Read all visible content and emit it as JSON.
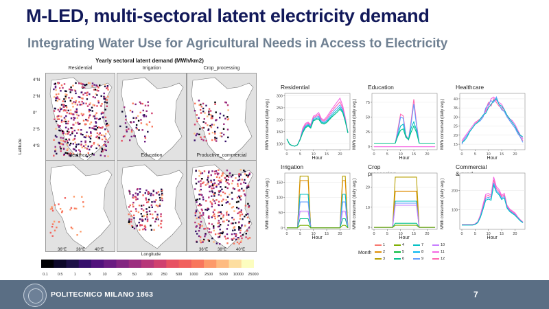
{
  "slide": {
    "title": "M-LED, multi-sectoral latent electricity demand",
    "subtitle": "Integrating Water Use for Agricultural Needs in Access to Electricity",
    "page_number": "7",
    "footer_text": "POLITECNICO MILANO 1863"
  },
  "maps": {
    "title": "Yearly sectoral latent demand (MWh/km2)",
    "ylabel": "Latitude",
    "xlabel": "Longitude",
    "y_ticks": [
      "4°N",
      "2°N",
      "0°",
      "2°S",
      "4°S"
    ],
    "x_ticks": [
      "36°E",
      "38°E",
      "40°E"
    ],
    "panels": [
      "Residential",
      "Irrigation",
      "Crop_processing",
      "Healthcare",
      "Education",
      "Productive_commercial"
    ],
    "colorbar_labels": [
      "0.1",
      "0.5",
      "1",
      "5",
      "10",
      "25",
      "50",
      "100",
      "250",
      "500",
      "1000",
      "2500",
      "5000",
      "10000",
      "25000"
    ],
    "colorbar_colors": [
      "#000004",
      "#0d0829",
      "#1d1147",
      "#36106b",
      "#51127c",
      "#6a1c81",
      "#832681",
      "#9c2e7f",
      "#b73779",
      "#d0416f",
      "#e75263",
      "#f1605d",
      "#f8765c",
      "#fd9a6a",
      "#febb81",
      "#fddea0",
      "#fcfdbf"
    ]
  },
  "chart_data": [
    {
      "type": "line",
      "title": "Residential",
      "xlabel": "Hour",
      "ylabel": "MWh consumed (daily avg.)",
      "x": [
        0,
        1,
        2,
        3,
        4,
        5,
        6,
        7,
        8,
        9,
        10,
        11,
        12,
        13,
        14,
        15,
        16,
        17,
        18,
        19,
        20,
        21,
        22,
        23
      ],
      "ylim": [
        75,
        310
      ],
      "y_ticks": [
        100,
        150,
        200,
        250,
        300
      ],
      "x_ticks": [
        0,
        5,
        10,
        15,
        20
      ],
      "series": [
        {
          "values": [
            120,
            98,
            92,
            90,
            95,
            120,
            165,
            185,
            190,
            180,
            215,
            220,
            230,
            205,
            200,
            212,
            228,
            245,
            260,
            275,
            290,
            260,
            210,
            145
          ]
        },
        {
          "values": [
            120,
            98,
            92,
            90,
            95,
            120,
            160,
            180,
            186,
            176,
            210,
            215,
            222,
            200,
            195,
            205,
            220,
            236,
            250,
            262,
            275,
            250,
            205,
            145
          ]
        },
        {
          "values": [
            120,
            98,
            92,
            90,
            95,
            118,
            155,
            175,
            182,
            172,
            205,
            210,
            215,
            195,
            190,
            198,
            212,
            226,
            240,
            250,
            262,
            242,
            200,
            145
          ]
        },
        {
          "values": [
            120,
            98,
            92,
            90,
            95,
            118,
            150,
            170,
            178,
            168,
            200,
            205,
            208,
            190,
            186,
            192,
            205,
            218,
            230,
            240,
            252,
            235,
            196,
            145
          ]
        },
        {
          "values": [
            120,
            98,
            92,
            90,
            95,
            116,
            146,
            166,
            174,
            165,
            196,
            200,
            202,
            186,
            182,
            188,
            200,
            212,
            222,
            232,
            244,
            230,
            193,
            145
          ]
        }
      ]
    },
    {
      "type": "line",
      "title": "Education",
      "xlabel": "Hour",
      "ylabel": "MWh consumed (daily avg.)",
      "x": [
        0,
        1,
        2,
        3,
        4,
        5,
        6,
        7,
        8,
        9,
        10,
        11,
        12,
        13,
        14,
        15,
        16,
        17,
        18,
        19,
        20,
        21,
        22,
        23
      ],
      "ylim": [
        -5,
        90
      ],
      "y_ticks": [
        0,
        25,
        50,
        75
      ],
      "x_ticks": [
        0,
        5,
        10,
        15,
        20
      ],
      "series": [
        {
          "values": [
            0,
            0,
            0,
            0,
            0,
            0,
            0,
            0,
            0,
            0,
            0,
            0,
            0,
            0,
            0,
            0,
            0,
            0,
            0,
            0,
            0,
            0,
            0,
            0
          ]
        },
        {
          "values": [
            6,
            6,
            6,
            6,
            6,
            6,
            6,
            6,
            6,
            30,
            55,
            52,
            20,
            12,
            45,
            80,
            40,
            6,
            6,
            6,
            6,
            6,
            6,
            6
          ]
        },
        {
          "values": [
            6,
            6,
            6,
            6,
            6,
            6,
            6,
            6,
            6,
            25,
            50,
            48,
            18,
            12,
            40,
            72,
            36,
            6,
            6,
            6,
            6,
            6,
            6,
            6
          ]
        },
        {
          "values": [
            6,
            6,
            6,
            6,
            6,
            6,
            6,
            6,
            6,
            20,
            35,
            38,
            18,
            12,
            32,
            42,
            28,
            6,
            6,
            6,
            6,
            6,
            6,
            6
          ]
        },
        {
          "values": [
            6,
            6,
            6,
            6,
            6,
            6,
            6,
            6,
            6,
            18,
            28,
            30,
            16,
            12,
            25,
            35,
            24,
            6,
            6,
            6,
            6,
            6,
            6,
            6
          ]
        }
      ]
    },
    {
      "type": "line",
      "title": "Healthcare",
      "xlabel": "Hour",
      "ylabel": "MWh consumed (daily avg.)",
      "x": [
        0,
        1,
        2,
        3,
        4,
        5,
        6,
        7,
        8,
        9,
        10,
        11,
        12,
        13,
        14,
        15,
        16,
        17,
        18,
        19,
        20,
        21,
        22,
        23
      ],
      "ylim": [
        12,
        43
      ],
      "y_ticks": [
        15,
        20,
        25,
        30,
        35,
        40
      ],
      "x_ticks": [
        0,
        5,
        10,
        15,
        20
      ],
      "series": [
        {
          "values": [
            17,
            19,
            21,
            23,
            25,
            27,
            28,
            29,
            31,
            33,
            36,
            40,
            41,
            39,
            38,
            37,
            34,
            31,
            29,
            28,
            26,
            23,
            20,
            18
          ]
        },
        {
          "values": [
            16,
            18,
            20,
            22,
            24,
            26,
            28,
            29,
            30,
            34,
            38,
            36,
            40,
            38,
            36,
            35,
            33,
            31,
            28,
            26,
            24,
            22,
            19,
            17
          ]
        },
        {
          "values": [
            15,
            18,
            20,
            22,
            24,
            26,
            27,
            28,
            30,
            35,
            37,
            39,
            38,
            41,
            37,
            34,
            33,
            30,
            28,
            26,
            24,
            21,
            19,
            16
          ]
        },
        {
          "values": [
            16,
            17,
            19,
            22,
            24,
            26,
            27,
            29,
            31,
            32,
            35,
            37,
            39,
            40,
            37,
            36,
            34,
            31,
            29,
            27,
            25,
            22,
            20,
            19
          ]
        }
      ]
    },
    {
      "type": "line",
      "title": "Irrigation",
      "xlabel": "Hour",
      "ylabel": "MWh consumed (daily avg.)",
      "x": [
        0,
        1,
        2,
        3,
        4,
        5,
        6,
        7,
        8,
        9,
        10,
        11,
        12,
        13,
        14,
        15,
        16,
        17,
        18,
        19,
        20,
        21,
        22,
        23
      ],
      "ylim": [
        -5,
        180
      ],
      "y_ticks": [
        0,
        50,
        100,
        150
      ],
      "x_ticks": [
        0,
        5,
        10,
        15,
        20
      ],
      "series": [
        {
          "values": [
            0,
            0,
            0,
            0,
            0,
            170,
            170,
            170,
            170,
            0,
            0,
            0,
            0,
            0,
            0,
            0,
            0,
            0,
            0,
            0,
            0,
            170,
            170,
            0
          ]
        },
        {
          "values": [
            0,
            0,
            0,
            0,
            0,
            155,
            155,
            155,
            155,
            0,
            0,
            0,
            0,
            0,
            0,
            0,
            0,
            0,
            0,
            0,
            0,
            155,
            155,
            0
          ]
        },
        {
          "values": [
            0,
            0,
            0,
            0,
            0,
            110,
            110,
            110,
            110,
            0,
            0,
            0,
            0,
            0,
            0,
            0,
            0,
            0,
            0,
            0,
            0,
            110,
            110,
            0
          ]
        },
        {
          "values": [
            0,
            0,
            0,
            0,
            0,
            85,
            85,
            85,
            85,
            0,
            0,
            0,
            0,
            0,
            0,
            0,
            0,
            0,
            0,
            0,
            0,
            85,
            85,
            0
          ]
        },
        {
          "values": [
            0,
            0,
            0,
            0,
            0,
            55,
            55,
            55,
            55,
            0,
            0,
            0,
            0,
            0,
            0,
            0,
            0,
            0,
            0,
            0,
            0,
            55,
            55,
            0
          ]
        },
        {
          "values": [
            0,
            0,
            0,
            0,
            0,
            30,
            30,
            30,
            30,
            0,
            0,
            0,
            0,
            0,
            0,
            0,
            0,
            0,
            0,
            0,
            0,
            30,
            30,
            0
          ]
        },
        {
          "values": [
            0,
            0,
            0,
            0,
            0,
            8,
            8,
            8,
            8,
            0,
            0,
            0,
            0,
            0,
            0,
            0,
            0,
            0,
            0,
            0,
            0,
            8,
            8,
            0
          ]
        }
      ]
    },
    {
      "type": "line",
      "title": "Crop processing",
      "xlabel": "Hour",
      "ylabel": "MWh consumed (daily avg.)",
      "x": [
        0,
        1,
        2,
        3,
        4,
        5,
        6,
        7,
        8,
        9,
        10,
        11,
        12,
        13,
        14,
        15,
        16,
        17,
        18,
        19,
        20,
        21,
        22,
        23
      ],
      "ylim": [
        -1,
        27
      ],
      "y_ticks": [
        0,
        10,
        20
      ],
      "x_ticks": [
        0,
        5,
        10,
        15,
        20
      ],
      "series": [
        {
          "values": [
            0,
            0,
            0,
            0,
            0,
            0,
            0,
            0,
            25,
            25,
            25,
            25,
            25,
            25,
            25,
            25,
            25,
            0,
            0,
            0,
            0,
            0,
            0,
            0
          ]
        },
        {
          "values": [
            0,
            0,
            0,
            0,
            0,
            0,
            0,
            0,
            18,
            18,
            18,
            18,
            18,
            18,
            18,
            18,
            18,
            0,
            0,
            0,
            0,
            0,
            0,
            0
          ]
        },
        {
          "values": [
            0,
            0,
            0,
            0,
            0,
            0,
            0,
            0,
            13,
            13,
            13,
            13,
            13,
            13,
            13,
            13,
            13,
            0,
            0,
            0,
            0,
            0,
            0,
            0
          ]
        },
        {
          "values": [
            0,
            0,
            0,
            0,
            0,
            0,
            0,
            0,
            12,
            12,
            12,
            12,
            12,
            12,
            12,
            12,
            12,
            0,
            0,
            0,
            0,
            0,
            0,
            0
          ]
        },
        {
          "values": [
            0,
            0,
            0,
            0,
            0,
            0,
            0,
            0,
            11,
            11,
            11,
            11,
            11,
            11,
            11,
            11,
            11,
            0,
            0,
            0,
            0,
            0,
            0,
            0
          ]
        },
        {
          "values": [
            0,
            0,
            0,
            0,
            0,
            0,
            0,
            0,
            2,
            2,
            2,
            2,
            2,
            2,
            2,
            2,
            2,
            0,
            0,
            0,
            0,
            0,
            0,
            0
          ]
        },
        {
          "values": [
            0,
            0,
            0,
            0,
            0,
            0,
            0,
            0,
            1,
            1,
            1,
            1,
            1,
            1,
            1,
            1,
            1,
            0,
            0,
            0,
            0,
            0,
            0,
            0
          ]
        }
      ]
    },
    {
      "type": "line",
      "title": "Commercial & prod.",
      "xlabel": "Hour",
      "ylabel": "MWh consumed (daily avg.)",
      "x": [
        0,
        1,
        2,
        3,
        4,
        5,
        6,
        7,
        8,
        9,
        10,
        11,
        12,
        13,
        14,
        15,
        16,
        17,
        18,
        19,
        20,
        21,
        22,
        23
      ],
      "ylim": [
        0,
        290
      ],
      "y_ticks": [
        100,
        200
      ],
      "x_ticks": [
        0,
        5,
        10,
        15,
        20
      ],
      "series": [
        {
          "values": [
            25,
            25,
            25,
            25,
            25,
            28,
            40,
            75,
            130,
            180,
            185,
            175,
            270,
            220,
            205,
            175,
            185,
            125,
            105,
            95,
            85,
            65,
            50,
            38
          ]
        },
        {
          "values": [
            24,
            24,
            24,
            24,
            24,
            27,
            38,
            70,
            120,
            170,
            175,
            165,
            255,
            210,
            195,
            168,
            178,
            120,
            100,
            90,
            80,
            62,
            48,
            36
          ]
        },
        {
          "values": [
            23,
            23,
            23,
            23,
            23,
            26,
            36,
            66,
            112,
            160,
            165,
            158,
            240,
            200,
            185,
            160,
            170,
            115,
            96,
            86,
            76,
            60,
            46,
            35
          ]
        },
        {
          "values": [
            22,
            22,
            22,
            22,
            22,
            25,
            34,
            62,
            105,
            150,
            156,
            150,
            228,
            192,
            178,
            154,
            162,
            110,
            92,
            82,
            72,
            58,
            44,
            34
          ]
        }
      ]
    }
  ],
  "legend": {
    "title": "Month",
    "items": [
      {
        "label": "1",
        "color": "#f8766d"
      },
      {
        "label": "2",
        "color": "#de8c00"
      },
      {
        "label": "3",
        "color": "#b79f00"
      },
      {
        "label": "4",
        "color": "#7cae00"
      },
      {
        "label": "5",
        "color": "#00ba38"
      },
      {
        "label": "6",
        "color": "#00c08b"
      },
      {
        "label": "7",
        "color": "#00bfc4"
      },
      {
        "label": "8",
        "color": "#00b4f0"
      },
      {
        "label": "9",
        "color": "#619cff"
      },
      {
        "label": "10",
        "color": "#c77cff"
      },
      {
        "label": "11",
        "color": "#f564e3"
      },
      {
        "label": "12",
        "color": "#ff64b0"
      }
    ]
  }
}
